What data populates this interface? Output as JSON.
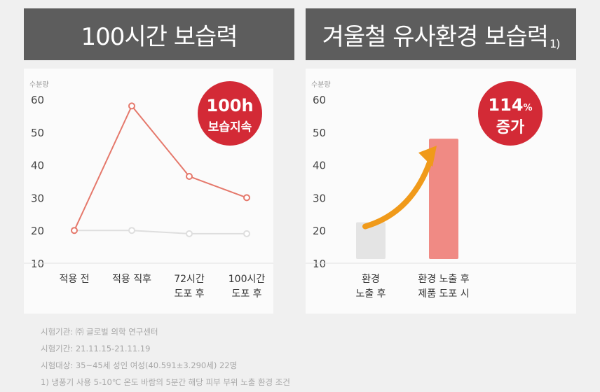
{
  "left_title": "100시간 보습력",
  "right_title": "겨울철 유사환경 보습력",
  "right_title_note": "1)",
  "colors": {
    "accent": "#d32a36",
    "line": "#e5786b",
    "baseline": "#dedede",
    "bar_before": "#e4e4e4",
    "bar_after": "#f08a84",
    "arrow": "#f09a1a",
    "header_bg": "#5d5d5d"
  },
  "chart_data": [
    {
      "type": "line",
      "title": "100시간 보습력",
      "ylabel": "수분량",
      "ylim": [
        10,
        60
      ],
      "yticks": [
        10,
        20,
        30,
        40,
        50,
        60
      ],
      "categories": [
        [
          "적용 전"
        ],
        [
          "적용 직후"
        ],
        [
          "72시간",
          "도포 후"
        ],
        [
          "100시간",
          "도포 후"
        ]
      ],
      "series": [
        {
          "name": "product",
          "values": [
            20,
            58,
            36.5,
            30
          ]
        },
        {
          "name": "baseline",
          "values": [
            20,
            20,
            19,
            19
          ]
        }
      ],
      "badge": [
        "100h",
        "보습지속"
      ]
    },
    {
      "type": "bar",
      "title": "겨울철 유사환경 보습력",
      "ylabel": "수분량",
      "ylim": [
        10,
        60
      ],
      "yticks": [
        10,
        20,
        30,
        40,
        50,
        60
      ],
      "categories": [
        [
          "환경",
          "노출 후"
        ],
        [
          "환경 노출 후",
          "제품 도포 시"
        ]
      ],
      "values": [
        22.5,
        48
      ],
      "badge_value": "114",
      "badge_unit": "%",
      "badge_label": "증가"
    }
  ],
  "footnotes": [
    "시험기관: ㈜ 글로벌 의학 연구센터",
    "시험기간: 21.11.15-21.11.19",
    "시험대상: 35~45세 성인 여성(40.591±3.290세) 22명",
    "1) 냉풍기 사용 5-10℃ 온도 바람의 5분간 해당 피부 부위 노출 환경 조건"
  ]
}
